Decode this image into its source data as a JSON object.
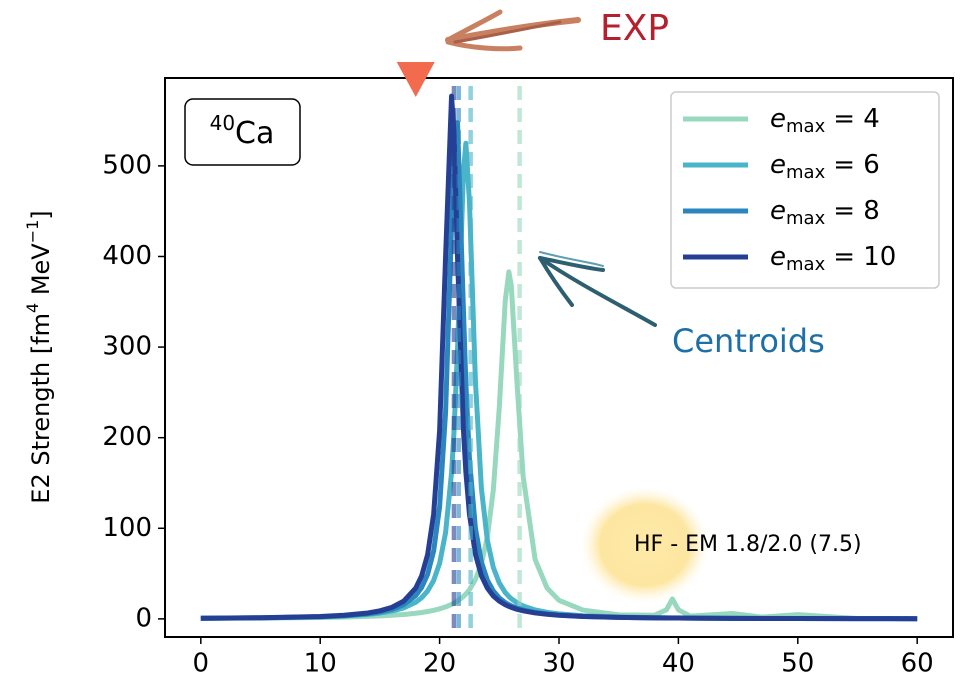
{
  "chart_data": {
    "type": "line",
    "ylabel": [
      "E2 Strength [fm",
      "4",
      " MeV",
      "−1",
      "]"
    ],
    "box_label": {
      "superscript": "40",
      "text": "Ca"
    },
    "legend_symbol": "e",
    "legend_subscript": "max",
    "legend_position": "upper right",
    "x": [
      0,
      5,
      10,
      12,
      14,
      15,
      16,
      17,
      18,
      18.5,
      19,
      19.5,
      20,
      20.5,
      21,
      21.2,
      21.5,
      22,
      22.2,
      22.5,
      23,
      23.5,
      24,
      24.5,
      25,
      25.5,
      25.8,
      26,
      26.5,
      27,
      28,
      29,
      30,
      32,
      35,
      38,
      39,
      39.5,
      40,
      41,
      44.5,
      47,
      50,
      55,
      60
    ],
    "xlim": [
      -3,
      63
    ],
    "xticks": [
      0,
      10,
      20,
      30,
      40,
      50,
      60
    ],
    "ylim": [
      -20,
      597
    ],
    "yticks": [
      0,
      100,
      200,
      300,
      400,
      500
    ],
    "series": [
      {
        "name": "= 4",
        "color": "#98d8be",
        "centroid": 26.7,
        "values": [
          0.57,
          0.88,
          1.53,
          1.99,
          2.73,
          3.26,
          3.95,
          4.88,
          6.19,
          7.05,
          8.11,
          9.41,
          11.1,
          13.2,
          15.9,
          17.3,
          19.7,
          24.8,
          27.4,
          32.2,
          43.3,
          60.9,
          90.3,
          142.4,
          233.5,
          351.4,
          383,
          368.3,
          257,
          157,
          65.6,
          34.1,
          20.5,
          9.71,
          4.47,
          4,
          10,
          22,
          10,
          3,
          6,
          1.9,
          4.7,
          0.45,
          0.33
        ]
      },
      {
        "name": "= 6",
        "color": "#4ab5c9",
        "centroid": 22.6,
        "values": [
          0.68,
          1.13,
          2.25,
          3.21,
          4.95,
          6.4,
          8.6,
          12.1,
          18.4,
          23.4,
          30.9,
          42.4,
          61.3,
          95.2,
          161.5,
          204.9,
          297.3,
          494.1,
          525,
          460.3,
          262.5,
          144.2,
          86.6,
          56.7,
          39.6,
          29.1,
          24.7,
          22.3,
          17.6,
          14.2,
          9.8,
          7.17,
          5.47,
          3.48,
          2.04,
          1.34,
          1.19,
          1.12,
          1.06,
          0.95,
          0.67,
          0.55,
          0.43,
          0.31,
          0.24
        ]
      },
      {
        "name": "= 8",
        "color": "#2b86bf",
        "centroid": 21.6,
        "values": [
          0.68,
          1.16,
          2.39,
          3.51,
          5.65,
          7.52,
          10.5,
          15.7,
          25.8,
          34.8,
          49.4,
          74.9,
          123.9,
          227.9,
          433.6,
          518.2,
          547.7,
          339.3,
          259.6,
          176.4,
          100.1,
          62.8,
          42.7,
          30.7,
          23.1,
          18,
          15.7,
          14.4,
          11.8,
          9.78,
          7.08,
          5.35,
          4.19,
          2.77,
          1.68,
          1.13,
          1.01,
          0.95,
          0.9,
          0.81,
          0.58,
          0.48,
          0.38,
          0.28,
          0.21
        ]
      },
      {
        "name": "= 10",
        "color": "#253f95",
        "centroid": 21.2,
        "values": [
          0.74,
          1.27,
          2.67,
          3.98,
          6.55,
          8.88,
          12.7,
          19.6,
          34,
          47.7,
          71.2,
          115.5,
          207.7,
          399.5,
          577,
          538.8,
          399.5,
          207.7,
          162.1,
          115.5,
          71.2,
          47.7,
          34,
          25.3,
          19.6,
          15.6,
          13.8,
          12.7,
          10.5,
          8.88,
          6.55,
          5.03,
          3.98,
          2.67,
          1.65,
          1.12,
          1,
          0.95,
          0.9,
          0.81,
          0.59,
          0.48,
          0.39,
          0.28,
          0.21
        ]
      }
    ],
    "exp_marker_x": 18,
    "annotations": {
      "exp": "EXP",
      "centroids": "Centroids",
      "method": "HF - EM 1.8/2.0 (7.5)"
    }
  }
}
